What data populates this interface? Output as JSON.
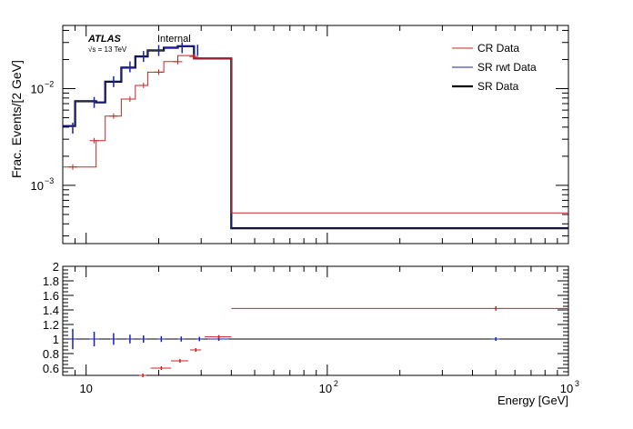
{
  "chart_data": [
    {
      "type": "line",
      "title": "",
      "xlabel": "",
      "ylabel": "Frac. Events/[2 GeV]",
      "x_scale": "log",
      "y_scale": "log",
      "xlim": [
        8,
        1000
      ],
      "ylim": [
        0.00025,
        0.045
      ],
      "y_ticks": [
        {
          "value": 0.01,
          "label": "10",
          "exp": "−2"
        },
        {
          "value": 0.001,
          "label": "10",
          "exp": "−3"
        }
      ],
      "annotations": {
        "experiment": "ATLAS",
        "status": "Internal",
        "energy": "√s = 13 TeV"
      },
      "legend": {
        "placement": "top-right"
      },
      "bin_edges": [
        8,
        9,
        11,
        12,
        14,
        16,
        18,
        21,
        24,
        28,
        32,
        40,
        1000
      ],
      "series": [
        {
          "name": "CR Data",
          "color": "#cc2222",
          "width": 1,
          "values": [
            0.00155,
            0.00155,
            0.0029,
            0.0052,
            0.0078,
            0.0108,
            0.0148,
            0.019,
            0.022,
            0.0205,
            0.0205,
            0.00052
          ]
        },
        {
          "name": "SR rwt Data",
          "color": "#1a22aa",
          "width": 1,
          "values": [
            0.0041,
            0.0074,
            0.0072,
            0.0118,
            0.0165,
            0.0215,
            0.0248,
            0.0265,
            0.0275,
            0.0205,
            0.0205,
            0.00036
          ]
        },
        {
          "name": "SR Data",
          "color": "#000000",
          "width": 2.2,
          "values": [
            0.0041,
            0.0074,
            0.0072,
            0.0118,
            0.0165,
            0.0215,
            0.0248,
            0.0265,
            0.0275,
            0.0205,
            0.0205,
            0.00036
          ]
        }
      ],
      "error_markers": {
        "x": [
          8.8,
          10.8,
          13,
          15.2,
          17.3,
          20,
          25,
          29
        ],
        "values": [
          0.0039,
          0.0072,
          0.0118,
          0.0168,
          0.0215,
          0.0248,
          0.0265,
          0.025
        ]
      },
      "cr_error_markers": {
        "x": [
          8.8,
          10.8,
          13,
          15.2,
          17.3,
          20,
          24,
          28
        ],
        "values": [
          0.00155,
          0.0029,
          0.0052,
          0.0078,
          0.0108,
          0.0148,
          0.019,
          0.0215
        ]
      }
    },
    {
      "type": "scatter",
      "xlabel": "Energy [GeV]",
      "ylabel": "",
      "x_scale": "log",
      "xlim": [
        8,
        1000
      ],
      "ylim": [
        0.5,
        2.0
      ],
      "x_ticks": [
        {
          "value": 10,
          "label": "10",
          "exp": ""
        },
        {
          "value": 100,
          "label": "10",
          "exp": "2"
        },
        {
          "value": 1000,
          "label": "10",
          "exp": "3"
        }
      ],
      "y_ticks": [
        {
          "value": 2,
          "label": "2"
        },
        {
          "value": 1.8,
          "label": "1.8"
        },
        {
          "value": 1.6,
          "label": "1.6"
        },
        {
          "value": 1.4,
          "label": "1.4"
        },
        {
          "value": 1.2,
          "label": "1.2"
        },
        {
          "value": 1,
          "label": "1"
        },
        {
          "value": 0.8,
          "label": "0.8"
        },
        {
          "value": 0.6,
          "label": "0.6"
        }
      ],
      "reference_line": 1,
      "series": [
        {
          "name": "SR rwt Data",
          "color": "#1a22aa",
          "points": [
            {
              "x": 8.8,
              "y": 1,
              "xlo": 8.5,
              "xhi": 9.1,
              "err": 0.14
            },
            {
              "x": 10.8,
              "y": 1,
              "xlo": 10.3,
              "xhi": 11.3,
              "err": 0.1
            },
            {
              "x": 13,
              "y": 1,
              "xlo": 12.6,
              "xhi": 13.4,
              "err": 0.08
            },
            {
              "x": 15.2,
              "y": 1,
              "xlo": 14.7,
              "xhi": 15.7,
              "err": 0.06
            },
            {
              "x": 17.3,
              "y": 1,
              "xlo": 16.8,
              "xhi": 17.8,
              "err": 0.05
            },
            {
              "x": 20.5,
              "y": 1,
              "xlo": 19.8,
              "xhi": 21.2,
              "err": 0.04
            },
            {
              "x": 24.8,
              "y": 1,
              "xlo": 24,
              "xhi": 25.6,
              "err": 0.035
            },
            {
              "x": 29.5,
              "y": 1,
              "xlo": 28.6,
              "xhi": 30.4,
              "err": 0.03
            },
            {
              "x": 35.5,
              "y": 1,
              "xlo": 32,
              "xhi": 39,
              "err": 0.025
            },
            {
              "x": 500,
              "y": 1,
              "xlo": 480,
              "xhi": 520,
              "err": 0.02
            }
          ]
        },
        {
          "name": "CR Data",
          "color": "#cc2222",
          "points": [
            {
              "x": 17.2,
              "y": 0.5,
              "xlo": 16.6,
              "xhi": 17.8,
              "err": 0.02
            },
            {
              "x": 20.5,
              "y": 0.6,
              "xlo": 18.5,
              "xhi": 22.5,
              "err": 0.02
            },
            {
              "x": 24.5,
              "y": 0.7,
              "xlo": 22.5,
              "xhi": 26.5,
              "err": 0.02
            },
            {
              "x": 28.5,
              "y": 0.85,
              "xlo": 27,
              "xhi": 30,
              "err": 0.02
            },
            {
              "x": 35.5,
              "y": 1.03,
              "xlo": 31,
              "xhi": 40,
              "err": 0.015
            },
            {
              "x": 500,
              "y": 1.42,
              "xlo": 40,
              "xhi": 1000,
              "err": 0.03
            }
          ]
        }
      ]
    }
  ]
}
